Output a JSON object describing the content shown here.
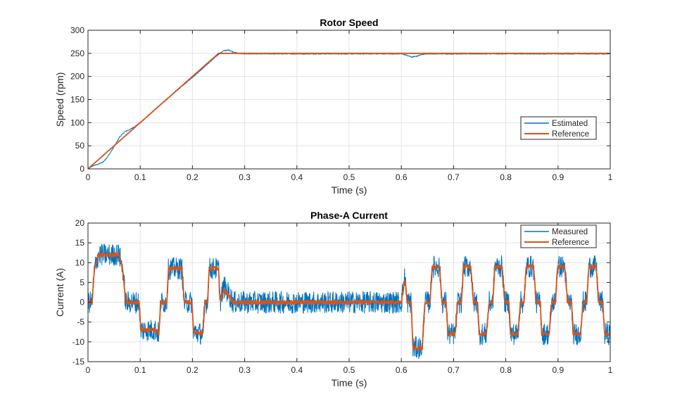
{
  "chart_data": [
    {
      "type": "line",
      "title": "Rotor Speed",
      "xlabel": "Time (s)",
      "ylabel": "Speed (rpm)",
      "xlim": [
        0,
        1
      ],
      "ylim": [
        0,
        300
      ],
      "xticks": [
        0,
        0.1,
        0.2,
        0.3,
        0.4,
        0.5,
        0.6,
        0.7,
        0.8,
        0.9,
        1
      ],
      "xtick_labels": [
        "0",
        "0.1",
        "0.2",
        "0.3",
        "0.4",
        "0.5",
        "0.6",
        "0.7",
        "0.8",
        "0.9",
        "1"
      ],
      "yticks": [
        0,
        50,
        100,
        150,
        200,
        250,
        300
      ],
      "ytick_labels": [
        "0",
        "50",
        "100",
        "150",
        "200",
        "250",
        "300"
      ],
      "grid": true,
      "legend_location": "lower-right",
      "series": [
        {
          "name": "Estimated",
          "color": "#0072BD",
          "noise": 1.0,
          "x": [
            0,
            0.01,
            0.02,
            0.03,
            0.04,
            0.05,
            0.06,
            0.07,
            0.08,
            0.09,
            0.1,
            0.15,
            0.2,
            0.24,
            0.25,
            0.26,
            0.27,
            0.28,
            0.29,
            0.3,
            0.4,
            0.5,
            0.6,
            0.61,
            0.62,
            0.63,
            0.64,
            0.65,
            1.0
          ],
          "y": [
            0,
            7,
            10,
            16,
            30,
            48,
            68,
            80,
            85,
            92,
            100,
            150,
            198,
            238,
            248,
            256,
            257,
            252,
            250,
            249,
            249,
            249,
            249,
            246,
            242,
            244,
            248,
            249,
            249
          ]
        },
        {
          "name": "Reference",
          "color": "#D95319",
          "noise": 0.3,
          "x": [
            0,
            0.25,
            1.0
          ],
          "y": [
            0,
            250,
            250
          ]
        }
      ]
    },
    {
      "type": "line",
      "title": "Phase-A Current",
      "xlabel": "Time (s)",
      "ylabel": "Current (A)",
      "xlim": [
        0,
        1
      ],
      "ylim": [
        -15,
        20
      ],
      "xticks": [
        0,
        0.1,
        0.2,
        0.3,
        0.4,
        0.5,
        0.6,
        0.7,
        0.8,
        0.9,
        1
      ],
      "xtick_labels": [
        "0",
        "0.1",
        "0.2",
        "0.3",
        "0.4",
        "0.5",
        "0.6",
        "0.7",
        "0.8",
        "0.9",
        "1"
      ],
      "yticks": [
        -15,
        -10,
        -5,
        0,
        5,
        10,
        15,
        20
      ],
      "ytick_labels": [
        "-15",
        "-10",
        "-5",
        "0",
        "5",
        "10",
        "15",
        "20"
      ],
      "grid": true,
      "legend_location": "top-right",
      "series": [
        {
          "name": "Measured",
          "color": "#0072BD",
          "noise": 2.8,
          "x": [
            0,
            0.008,
            0.012,
            0.02,
            0.06,
            0.067,
            0.072,
            0.098,
            0.101,
            0.13,
            0.136,
            0.139,
            0.151,
            0.154,
            0.18,
            0.184,
            0.19,
            0.199,
            0.202,
            0.22,
            0.224,
            0.229,
            0.232,
            0.25,
            0.253,
            0.26,
            0.268,
            0.278,
            0.29,
            0.6,
            0.607,
            0.611,
            0.619,
            0.622,
            0.64,
            0.645,
            0.655,
            0.659,
            0.673,
            0.678,
            0.686,
            0.689,
            0.703,
            0.708,
            0.715,
            0.719,
            0.733,
            0.738,
            0.746,
            0.749,
            0.763,
            0.768,
            0.775,
            0.779,
            0.793,
            0.798,
            0.806,
            0.809,
            0.823,
            0.828,
            0.835,
            0.839,
            0.853,
            0.858,
            0.866,
            0.869,
            0.883,
            0.888,
            0.895,
            0.899,
            0.913,
            0.918,
            0.926,
            0.929,
            0.943,
            0.948,
            0.955,
            0.959,
            0.973,
            0.978,
            0.986,
            0.989,
            1.0
          ],
          "y": [
            0,
            0,
            8,
            12,
            12,
            8,
            0,
            0,
            -7,
            -7,
            -8,
            0,
            0,
            8.5,
            8.5,
            0,
            0,
            0,
            -7.5,
            -8,
            0,
            0,
            8.5,
            8.5,
            0,
            4,
            2.5,
            0,
            0,
            0,
            7,
            0,
            0,
            -11.5,
            -11.5,
            0,
            0,
            9,
            9,
            0,
            0,
            -8,
            -8,
            0,
            0,
            9,
            9,
            0,
            0,
            -8,
            -8,
            0,
            0,
            9,
            9,
            0,
            0,
            -8,
            -8,
            0,
            0,
            9,
            9,
            0,
            0,
            -8,
            -8,
            0,
            0,
            9,
            9,
            0,
            0,
            -8,
            -8,
            0,
            0,
            9,
            9,
            0,
            0,
            -8,
            -8
          ]
        },
        {
          "name": "Reference",
          "color": "#D95319",
          "noise": 0.5,
          "x": [
            0,
            0.008,
            0.012,
            0.02,
            0.06,
            0.067,
            0.072,
            0.098,
            0.101,
            0.13,
            0.136,
            0.139,
            0.151,
            0.154,
            0.18,
            0.184,
            0.19,
            0.199,
            0.202,
            0.22,
            0.224,
            0.229,
            0.232,
            0.25,
            0.253,
            0.26,
            0.268,
            0.278,
            0.29,
            0.6,
            0.607,
            0.611,
            0.619,
            0.622,
            0.64,
            0.645,
            0.655,
            0.659,
            0.673,
            0.678,
            0.686,
            0.689,
            0.703,
            0.708,
            0.715,
            0.719,
            0.733,
            0.738,
            0.746,
            0.749,
            0.763,
            0.768,
            0.775,
            0.779,
            0.793,
            0.798,
            0.806,
            0.809,
            0.823,
            0.828,
            0.835,
            0.839,
            0.853,
            0.858,
            0.866,
            0.869,
            0.883,
            0.888,
            0.895,
            0.899,
            0.913,
            0.918,
            0.926,
            0.929,
            0.943,
            0.948,
            0.955,
            0.959,
            0.973,
            0.978,
            0.986,
            0.989,
            1.0
          ],
          "y": [
            0,
            0,
            8,
            12,
            12,
            8,
            0,
            0,
            -7,
            -7,
            -8,
            0,
            0,
            8.5,
            8.5,
            0,
            0,
            0,
            -7.5,
            -8,
            0,
            0,
            8.5,
            8.5,
            0,
            3,
            2,
            0,
            0,
            0,
            6,
            0,
            0,
            -11.5,
            -11.5,
            0,
            0,
            9,
            9,
            0,
            0,
            -8,
            -8,
            0,
            0,
            9,
            9,
            0,
            0,
            -8,
            -8,
            0,
            0,
            9,
            9,
            0,
            0,
            -8,
            -8,
            0,
            0,
            9,
            9,
            0,
            0,
            -8,
            -8,
            0,
            0,
            9,
            9,
            0,
            0,
            -8,
            -8,
            0,
            0,
            9,
            9,
            0,
            0,
            -8,
            -8
          ]
        }
      ]
    }
  ]
}
